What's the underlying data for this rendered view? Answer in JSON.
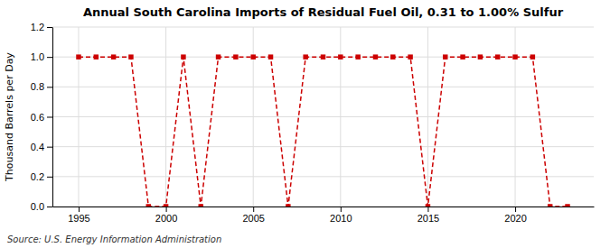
{
  "chart_data": {
    "type": "line",
    "title": "Annual South Carolina Imports of Residual Fuel Oil, 0.31 to 1.00% Sulfur",
    "y_label": "Thousand Barrels per Day",
    "source": "Source: U.S. Energy Information Administration",
    "x": [
      1995,
      1996,
      1997,
      1998,
      1999,
      2000,
      2001,
      2002,
      2003,
      2004,
      2005,
      2006,
      2007,
      2008,
      2009,
      2010,
      2011,
      2012,
      2013,
      2014,
      2015,
      2016,
      2017,
      2018,
      2019,
      2020,
      2021,
      2022,
      2023
    ],
    "values": [
      1.0,
      1.0,
      1.0,
      1.0,
      0.0,
      0.0,
      1.0,
      0.0,
      1.0,
      1.0,
      1.0,
      1.0,
      0.0,
      1.0,
      1.0,
      1.0,
      1.0,
      1.0,
      1.0,
      1.0,
      0.0,
      1.0,
      1.0,
      1.0,
      1.0,
      1.0,
      1.0,
      0.0,
      0.0
    ],
    "color": "#cc0000",
    "marker": "square",
    "line_style": "dashed",
    "xlim": [
      1993.5,
      2024.5
    ],
    "xticks": [
      1995,
      2000,
      2005,
      2010,
      2015,
      2020
    ],
    "ylim": [
      0.0,
      1.2
    ],
    "yticks": [
      {
        "value": 0.0,
        "label": "0.0"
      },
      0.2,
      0.4,
      0.6,
      0.8,
      {
        "value": 1.0,
        "label": "1.0"
      },
      1.2
    ],
    "grid": true
  }
}
